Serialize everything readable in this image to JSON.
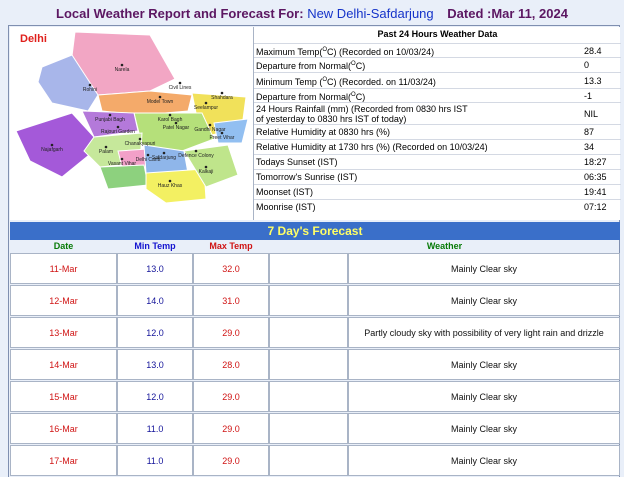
{
  "header": {
    "title": "Local Weather Report and Forecast For:",
    "station": "New Delhi-Safdarjung",
    "date": "Dated :Mar 11, 2024"
  },
  "map": {
    "title": "Delhi",
    "labels": [
      "Narela",
      "Rohini",
      "Model Town",
      "Civil Lines",
      "Shahdara",
      "Seelampur",
      "Punjabi Bagh",
      "Karol Bagh",
      "Patel Nagar",
      "Rajouri Garden",
      "Gandhi Nagar",
      "Preet Vihar",
      "Najafgarh",
      "Palam",
      "Delhi Cantt",
      "Chanakyapuri",
      "Defence Colony",
      "Vasant Vihar",
      "Safdarjung",
      "Kalkaji",
      "Hauz Khas"
    ]
  },
  "past24": {
    "title": "Past 24 Hours Weather Data",
    "rows": [
      {
        "pre": "Maximum Temp(",
        "sup": "O",
        "post": "C) (Recorded on 10/03/24)",
        "value": "28.4"
      },
      {
        "pre": "Departure from Normal(",
        "sup": "O",
        "post": "C)",
        "value": "0"
      },
      {
        "pre": "Minimum Temp (",
        "sup": "O",
        "post": "C) (Recorded. on 11/03/24)",
        "value": "13.3"
      },
      {
        "pre": "Departure from Normal(",
        "sup": "O",
        "post": "C)",
        "value": "-1"
      },
      {
        "lines": [
          "24 Hours Rainfall (mm) (Recorded from 0830 hrs IST",
          "of yesterday to 0830 hrs IST of today)"
        ],
        "value": "NIL"
      },
      {
        "lines": [
          "Relative Humidity at 0830 hrs (%)"
        ],
        "value": "87"
      },
      {
        "lines": [
          "Relative Humidity at 1730 hrs (%) (Recorded on 10/03/24)"
        ],
        "value": "34"
      },
      {
        "lines": [
          "Todays Sunset (IST)"
        ],
        "value": "18:27"
      },
      {
        "lines": [
          "Tomorrow's Sunrise (IST)"
        ],
        "value": "06:35"
      },
      {
        "lines": [
          "Moonset (IST)"
        ],
        "value": "19:41"
      },
      {
        "lines": [
          "Moonrise (IST)"
        ],
        "value": "07:12"
      }
    ]
  },
  "forecast": {
    "title": "7 Day's Forecast",
    "columns": [
      "Date",
      "Min Temp",
      "Max Temp",
      "Weather"
    ],
    "rows": [
      {
        "date": "11-Mar",
        "min": "13.0",
        "max": "32.0",
        "weather": "Mainly Clear sky"
      },
      {
        "date": "12-Mar",
        "min": "14.0",
        "max": "31.0",
        "weather": "Mainly Clear sky"
      },
      {
        "date": "13-Mar",
        "min": "12.0",
        "max": "29.0",
        "weather": "Partly cloudy sky with possibility of very light rain and drizzle"
      },
      {
        "date": "14-Mar",
        "min": "13.0",
        "max": "28.0",
        "weather": "Mainly Clear sky"
      },
      {
        "date": "15-Mar",
        "min": "12.0",
        "max": "29.0",
        "weather": "Mainly Clear sky"
      },
      {
        "date": "16-Mar",
        "min": "11.0",
        "max": "29.0",
        "weather": "Mainly Clear sky"
      },
      {
        "date": "17-Mar",
        "min": "11.0",
        "max": "29.0",
        "weather": "Mainly Clear sky"
      }
    ]
  }
}
